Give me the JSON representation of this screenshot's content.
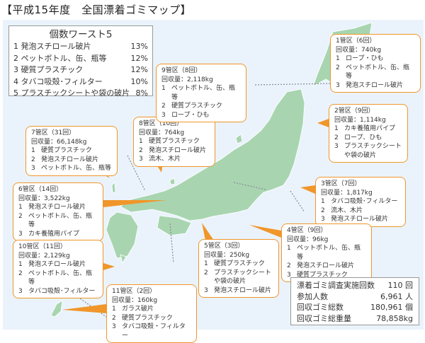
{
  "title": "【平成15年度　全国漂着ゴミマップ】",
  "colors": {
    "sea": "#eaf3fb",
    "land": "#a8d5b0",
    "callout_border": "#f0962a",
    "pointer": "#f0962a"
  },
  "worst5": {
    "heading": "個数ワースト5",
    "items": [
      {
        "label": "1 発泡スチロール破片",
        "pct": "13%"
      },
      {
        "label": "2 ペットボトル、缶、瓶等",
        "pct": "12%"
      },
      {
        "label": "3 硬質プラスチック",
        "pct": "12%"
      },
      {
        "label": "4 タバコ吸殻･フィルター",
        "pct": "10%"
      },
      {
        "label": "5 プラスチックシートや袋の破片",
        "pct": "8%"
      }
    ]
  },
  "regions": [
    {
      "id": "1",
      "name": "1管区（6回）",
      "weight": "回収量：740kg",
      "items": [
        "ロープ・ひも",
        "ペットボトル、缶、瓶等",
        "発泡スチロール破片"
      ]
    },
    {
      "id": "2",
      "name": "2管区（9回）",
      "weight": "回収量：1,114kg",
      "items": [
        "カキ養殖用パイプ",
        "ロープ、ひも",
        "プラスチックシートや袋の破片"
      ]
    },
    {
      "id": "3",
      "name": "3管区（7回）",
      "weight": "回収量：1,817kg",
      "items": [
        "タバコ吸殻･フィルター",
        "流木、木片",
        "発泡スチロール破片"
      ]
    },
    {
      "id": "4",
      "name": "4管区（9回）",
      "weight": "回収量：96kg",
      "items": [
        "ペットボトル、缶、瓶等",
        "発泡スチロール破片",
        "硬質プラスチック"
      ]
    },
    {
      "id": "5",
      "name": "5管区（3回）",
      "weight": "回収量：250kg",
      "items": [
        "硬質プラスチック",
        "プラスチックシートや袋の破片",
        "発泡スチロール破片"
      ]
    },
    {
      "id": "6",
      "name": "6管区（14回）",
      "weight": "回収量：3,522kg",
      "items": [
        "発泡スチロール破片",
        "ペットボトル、缶、瓶等",
        "カキ養殖用パイプ"
      ]
    },
    {
      "id": "7",
      "name": "7管区（31回）",
      "weight": "回収量：66,148kg",
      "items": [
        "硬質プラスチック",
        "発泡スチロール破片",
        "ペットボトル、缶、瓶等"
      ]
    },
    {
      "id": "8",
      "name": "8管区（10回）",
      "weight": "回収量：764kg",
      "items": [
        "硬質プラスチック",
        "発泡スチロール破片",
        "流木、木片"
      ]
    },
    {
      "id": "9",
      "name": "9管区（8回）",
      "weight": "回収量：2,118kg",
      "items": [
        "ペットボトル、缶、瓶等",
        "硬質プラスチック",
        "ロープ・ひも"
      ]
    },
    {
      "id": "10",
      "name": "10管区（11回）",
      "weight": "回収量：2,129kg",
      "items": [
        "発泡スチロール破片",
        "ペットボトル、缶、瓶等",
        "タバコ吸殻･フィルター"
      ]
    },
    {
      "id": "11",
      "name": "11管区（2回）",
      "weight": "回収量：160kg",
      "items": [
        "ガラス破片",
        "硬質プラスチック",
        "タバコ吸殻・フィルター"
      ]
    }
  ],
  "summary": [
    {
      "label": "漂着ゴミ調査実施回数",
      "value": "110 回"
    },
    {
      "label": "参加人数",
      "value": "6,961 人"
    },
    {
      "label": "回収ゴミ総数",
      "value": "180,961 個"
    },
    {
      "label": "回収ゴミ総重量",
      "value": "78,858kg"
    }
  ]
}
